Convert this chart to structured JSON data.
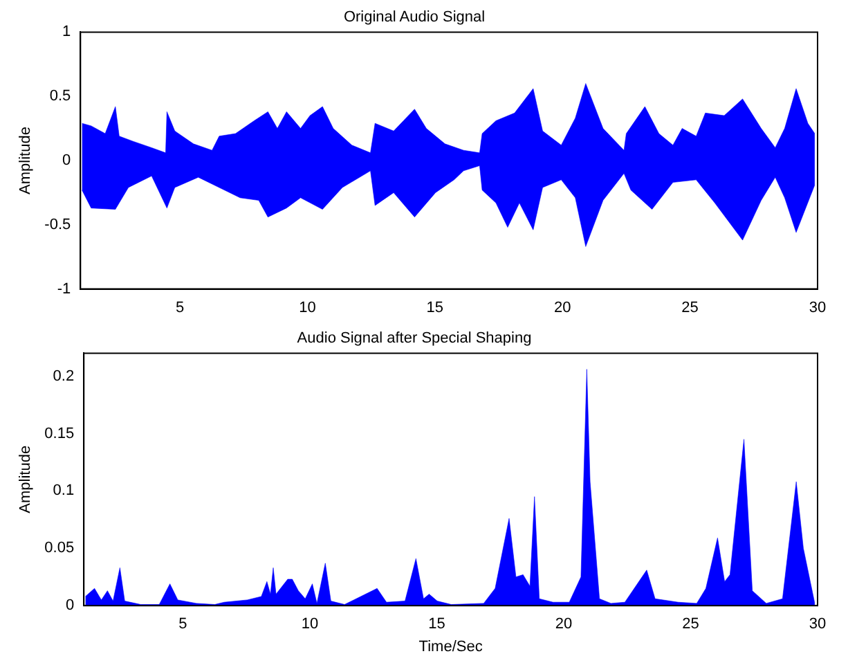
{
  "chart_data": [
    {
      "type": "area",
      "title": "Original Audio Signal",
      "ylabel": "Amplitude",
      "xlim": [
        1.1,
        30
      ],
      "xticks": [
        5,
        10,
        15,
        20,
        25,
        30
      ],
      "ylim": [
        -1,
        1
      ],
      "yticks": [
        -1,
        -0.5,
        0,
        0.5,
        1
      ],
      "grid": false,
      "legend": false,
      "series": [
        {
          "color": "#0000ff",
          "x": [
            1.16,
            1.52,
            2.07,
            2.47,
            2.62,
            3.16,
            3.89,
            4.44,
            4.49,
            4.8,
            5.53,
            6.26,
            6.54,
            7.18,
            7.91,
            8.45,
            8.82,
            9.18,
            9.73,
            10.1,
            10.59,
            11.01,
            11.74,
            12.47,
            12.65,
            13.38,
            14.2,
            14.66,
            15.39,
            16.12,
            16.75,
            16.85,
            17.39,
            18.12,
            18.85,
            19.22,
            19.95,
            20.5,
            20.91,
            21.59,
            22.41,
            22.5,
            23.23,
            23.78,
            24.33,
            24.69,
            25.24,
            25.6,
            26.34,
            27.06,
            27.79,
            28.34,
            28.71,
            29.16,
            29.62,
            29.89
          ],
          "values": [
            0.29,
            0.27,
            0.21,
            0.42,
            0.19,
            0.15,
            0.1,
            0.06,
            0.38,
            0.23,
            0.13,
            0.08,
            0.19,
            0.21,
            0.31,
            0.38,
            0.25,
            0.38,
            0.25,
            0.35,
            0.42,
            0.25,
            0.12,
            0.06,
            0.29,
            0.23,
            0.4,
            0.25,
            0.13,
            0.08,
            0.06,
            0.21,
            0.31,
            0.37,
            0.56,
            0.23,
            0.12,
            0.33,
            0.6,
            0.25,
            0.08,
            0.21,
            0.42,
            0.21,
            0.12,
            0.25,
            0.19,
            0.37,
            0.35,
            0.48,
            0.25,
            0.1,
            0.25,
            0.56,
            0.29,
            0.21
          ]
        },
        {
          "color": "#0000ff",
          "x": [
            1.16,
            1.52,
            2.47,
            2.98,
            3.89,
            4.49,
            4.8,
            5.72,
            6.54,
            7.36,
            8.09,
            8.45,
            9.18,
            9.73,
            10.59,
            11.37,
            12.47,
            12.65,
            13.38,
            14.2,
            15.02,
            15.75,
            16.12,
            16.75,
            16.85,
            17.39,
            17.85,
            18.31,
            18.85,
            19.22,
            19.95,
            20.5,
            20.91,
            21.59,
            22.41,
            22.68,
            23.51,
            24.33,
            25.24,
            25.97,
            27.06,
            27.79,
            28.34,
            28.71,
            29.16,
            29.89
          ],
          "values": [
            -0.23,
            -0.37,
            -0.38,
            -0.21,
            -0.12,
            -0.37,
            -0.21,
            -0.13,
            -0.21,
            -0.29,
            -0.31,
            -0.44,
            -0.37,
            -0.29,
            -0.38,
            -0.21,
            -0.08,
            -0.35,
            -0.25,
            -0.44,
            -0.25,
            -0.15,
            -0.08,
            -0.04,
            -0.23,
            -0.33,
            -0.52,
            -0.33,
            -0.54,
            -0.21,
            -0.15,
            -0.29,
            -0.67,
            -0.31,
            -0.1,
            -0.23,
            -0.38,
            -0.17,
            -0.15,
            -0.33,
            -0.62,
            -0.31,
            -0.13,
            -0.29,
            -0.56,
            -0.19
          ]
        }
      ]
    },
    {
      "type": "area",
      "title": "Audio Signal after Special Shaping",
      "xlabel": "Time/Sec",
      "ylabel": "Amplitude",
      "xlim": [
        1.1,
        30
      ],
      "xticks": [
        5,
        10,
        15,
        20,
        25,
        30
      ],
      "ylim": [
        0,
        0.22
      ],
      "yticks": [
        0,
        0.05,
        0.1,
        0.15,
        0.2
      ],
      "grid": false,
      "legend": false,
      "series": [
        {
          "color": "#0000ff",
          "x": [
            1.16,
            1.52,
            1.79,
            2.03,
            2.25,
            2.52,
            2.71,
            3.34,
            4.07,
            4.49,
            4.8,
            5.53,
            6.26,
            6.63,
            7.54,
            8.09,
            8.31,
            8.45,
            8.56,
            8.67,
            9.13,
            9.31,
            9.55,
            9.82,
            10.1,
            10.28,
            10.61,
            10.83,
            11.37,
            12.65,
            13.02,
            13.75,
            14.18,
            14.48,
            14.7,
            15.02,
            15.57,
            16.85,
            17.3,
            17.85,
            18.12,
            18.4,
            18.67,
            18.85,
            19.04,
            19.58,
            20.22,
            20.68,
            20.91,
            21.04,
            21.41,
            21.86,
            22.41,
            23.27,
            23.6,
            24.51,
            25.24,
            25.6,
            26.06,
            26.34,
            26.55,
            27.1,
            27.43,
            27.98,
            28.62,
            29.16,
            29.44,
            29.89
          ],
          "values": [
            0.008,
            0.015,
            0.005,
            0.013,
            0.004,
            0.033,
            0.004,
            0.001,
            0.001,
            0.019,
            0.005,
            0.002,
            0.001,
            0.003,
            0.005,
            0.008,
            0.021,
            0.01,
            0.033,
            0.01,
            0.023,
            0.023,
            0.013,
            0.006,
            0.019,
            0.002,
            0.037,
            0.004,
            0.001,
            0.015,
            0.003,
            0.004,
            0.041,
            0.006,
            0.01,
            0.004,
            0.001,
            0.002,
            0.015,
            0.076,
            0.025,
            0.027,
            0.017,
            0.095,
            0.006,
            0.003,
            0.003,
            0.025,
            0.206,
            0.108,
            0.006,
            0.002,
            0.003,
            0.031,
            0.006,
            0.003,
            0.002,
            0.015,
            0.059,
            0.021,
            0.027,
            0.145,
            0.013,
            0.002,
            0.006,
            0.108,
            0.05,
            0.002
          ]
        }
      ]
    }
  ]
}
